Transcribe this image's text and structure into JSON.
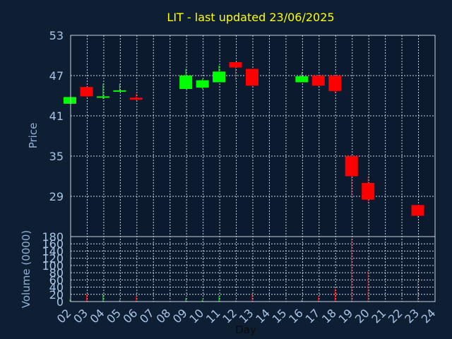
{
  "chart_data": {
    "type": "candlestick",
    "title": "LIT - last updated 23/06/2025",
    "xlabel": "Day",
    "ylabel": "Price",
    "volume_ylabel": "Volume (0000)",
    "x_ticks": [
      "02",
      "03",
      "04",
      "05",
      "06",
      "07",
      "08",
      "09",
      "10",
      "11",
      "12",
      "13",
      "14",
      "15",
      "16",
      "17",
      "18",
      "19",
      "20",
      "21",
      "22",
      "23",
      "24"
    ],
    "y_ticks": [
      29,
      35,
      41,
      47,
      53
    ],
    "ylim": [
      23,
      53
    ],
    "volume_ticks": [
      0,
      20,
      40,
      60,
      80,
      100,
      120,
      140,
      160,
      180
    ],
    "volume_ylim": [
      0,
      180
    ],
    "grid": true,
    "colors": {
      "up": "#00ff00",
      "down": "#ff0000",
      "background": "#0e1f33",
      "plot_background": "#0b1a2e"
    },
    "candles": [
      {
        "day": "02",
        "open": 42.8,
        "high": 43.8,
        "low": 42.8,
        "close": 43.8,
        "volume": 5
      },
      {
        "day": "03",
        "open": 45.3,
        "high": 45.3,
        "low": 43.8,
        "close": 43.9,
        "volume": 20
      },
      {
        "day": "04",
        "open": 43.7,
        "high": 45.8,
        "low": 43.5,
        "close": 43.9,
        "volume": 20
      },
      {
        "day": "05",
        "open": 44.6,
        "high": 45.8,
        "low": 44.6,
        "close": 44.8,
        "volume": 5
      },
      {
        "day": "06",
        "open": 43.7,
        "high": 44.3,
        "low": 43.3,
        "close": 43.4,
        "volume": 15
      },
      {
        "day": "09",
        "open": 45.0,
        "high": 48.0,
        "low": 45.0,
        "close": 47.0,
        "volume": 10
      },
      {
        "day": "10",
        "open": 45.2,
        "high": 46.5,
        "low": 45.0,
        "close": 46.3,
        "volume": 5
      },
      {
        "day": "11",
        "open": 46.0,
        "high": 48.5,
        "low": 46.0,
        "close": 47.6,
        "volume": 15
      },
      {
        "day": "12",
        "open": 49.0,
        "high": 49.0,
        "low": 46.3,
        "close": 48.2,
        "volume": 5
      },
      {
        "day": "13",
        "open": 48.0,
        "high": 48.0,
        "low": 45.4,
        "close": 45.5,
        "volume": 20
      },
      {
        "day": "16",
        "open": 46.0,
        "high": 47.5,
        "low": 46.0,
        "close": 46.9,
        "volume": 5
      },
      {
        "day": "17",
        "open": 47.0,
        "high": 47.0,
        "low": 45.4,
        "close": 45.5,
        "volume": 15
      },
      {
        "day": "18",
        "open": 47.0,
        "high": 47.0,
        "low": 44.4,
        "close": 44.7,
        "volume": 35
      },
      {
        "day": "19",
        "open": 35.0,
        "high": 35.0,
        "low": 29.0,
        "close": 32.0,
        "volume": 175
      },
      {
        "day": "20",
        "open": 31.0,
        "high": 32.0,
        "low": 28.0,
        "close": 28.5,
        "volume": 85
      },
      {
        "day": "23",
        "open": 27.7,
        "high": 27.7,
        "low": 25.8,
        "close": 26.1,
        "volume": 60
      }
    ]
  }
}
